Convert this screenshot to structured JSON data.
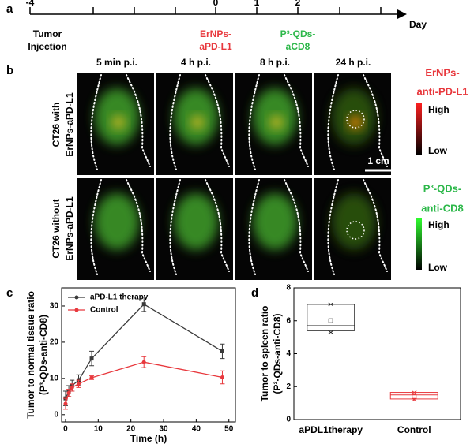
{
  "panel_labels": [
    "a",
    "b",
    "c",
    "d"
  ],
  "timeline": {
    "tick_labels": [
      "-4",
      "0",
      "1",
      "2"
    ],
    "unit": "Day",
    "events": [
      {
        "lines": [
          "Tumor",
          "Injection"
        ]
      },
      {
        "lines": [
          "ErNPs-",
          "aPD-L1"
        ]
      },
      {
        "lines": [
          "P³-QDs-",
          "aCD8"
        ]
      }
    ]
  },
  "imaging": {
    "columns": [
      "5 min p.i.",
      "4 h p.i.",
      "8 h p.i.",
      "24 h p.i."
    ],
    "rows": [
      {
        "lines": [
          "CT26 with",
          "ErNPs-aPD-L1"
        ]
      },
      {
        "lines": [
          "CT26 without",
          "ErNPs-aPD-L1"
        ]
      }
    ],
    "scale_bar": "1 cm",
    "colorbars": [
      {
        "lines": [
          "ErNPs-",
          "anti-PD-L1"
        ],
        "high": "High",
        "low": "Low"
      },
      {
        "lines": [
          "P³-QDs-",
          "anti-CD8"
        ],
        "high": "High",
        "low": "Low"
      }
    ]
  },
  "chart_data": [
    {
      "type": "line",
      "x_label": "Time (h)",
      "y_label": [
        "Tumor to normal tissue ratio",
        "(P³-QDs-anti-CD8)"
      ],
      "x": [
        0,
        1,
        2,
        4,
        8,
        24,
        48
      ],
      "series": [
        {
          "name": "aPD-L1 therapy",
          "color": "#3a3a3a",
          "values": [
            4.5,
            6.5,
            8,
            9.5,
            15.5,
            30.5,
            17.5
          ],
          "errors": [
            2,
            1.5,
            1.5,
            1.5,
            2,
            2,
            2
          ]
        },
        {
          "name": "Control",
          "color": "#e8383d",
          "values": [
            3,
            6,
            7.5,
            8.5,
            10.2,
            14.5,
            10.3
          ],
          "errors": [
            1.5,
            1,
            1,
            1,
            0.5,
            1.5,
            1.8
          ]
        }
      ],
      "xlim": [
        -1.2,
        52
      ],
      "xticks": [
        0,
        10,
        20,
        30,
        40,
        50
      ],
      "ylim": [
        -2,
        35
      ],
      "yticks": [
        0,
        10,
        20,
        30
      ],
      "legend": "upper-left"
    },
    {
      "type": "box",
      "y_label": [
        "Tumor to spleen ratio",
        "(P³-QDs-anti-CD8)"
      ],
      "categories": [
        "aPDL1therapy",
        "Control"
      ],
      "boxes": [
        {
          "min": 5.3,
          "q1": 5.4,
          "median": 5.7,
          "q3": 7.0,
          "max": 7.0,
          "mean": 6.0,
          "color": "#222222"
        },
        {
          "min": 1.2,
          "q1": 1.25,
          "median": 1.5,
          "q3": 1.65,
          "max": 1.65,
          "mean": 1.4,
          "color": "#e8383d"
        }
      ],
      "ylim": [
        0,
        8
      ],
      "yticks": [
        0,
        2,
        4,
        6,
        8
      ]
    }
  ]
}
